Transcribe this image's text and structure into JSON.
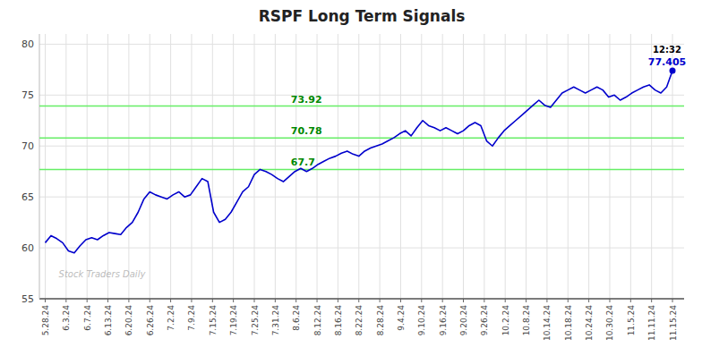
{
  "chart_data": {
    "type": "line",
    "title": "RSPF Long Term Signals",
    "series": [
      {
        "color": "#0000cc",
        "values": [
          60.5,
          61.2,
          60.9,
          60.5,
          59.7,
          59.5,
          60.2,
          60.8,
          61.0,
          60.8,
          61.2,
          61.5,
          61.4,
          61.3,
          62.0,
          62.5,
          63.5,
          64.8,
          65.5,
          65.2,
          65.0,
          64.8,
          65.2,
          65.5,
          65.0,
          65.2,
          66.0,
          66.8,
          66.5,
          63.5,
          62.5,
          62.8,
          63.5,
          64.5,
          65.5,
          66.0,
          67.2,
          67.7,
          67.5,
          67.2,
          66.8,
          66.5,
          67.0,
          67.5,
          67.8,
          67.5,
          67.8,
          68.2,
          68.5,
          68.8,
          69.0,
          69.3,
          69.5,
          69.2,
          69.0,
          69.5,
          69.8,
          70.0,
          70.2,
          70.5,
          70.8,
          71.2,
          71.5,
          71.0,
          71.8,
          72.5,
          72.0,
          71.8,
          71.5,
          71.8,
          71.5,
          71.2,
          71.5,
          72.0,
          72.3,
          72.0,
          70.5,
          70.0,
          70.8,
          71.5,
          72.0,
          72.5,
          73.0,
          73.5,
          74.0,
          74.5,
          74.0,
          73.8,
          74.5,
          75.2,
          75.5,
          75.8,
          75.5,
          75.2,
          75.5,
          75.8,
          75.5,
          74.8,
          75.0,
          74.5,
          74.8,
          75.2,
          75.5,
          75.8,
          76.0,
          75.5,
          75.2,
          75.8,
          77.405
        ]
      }
    ],
    "hlines": {
      "values": [
        73.92,
        70.78,
        67.7
      ],
      "color": "#66ee66",
      "label_color": "#008800"
    },
    "last_price": 77.405,
    "last_time": "12:32",
    "watermark": "Stock Traders Daily",
    "grid": true,
    "xlim": [
      -1,
      110
    ],
    "xticks": [
      {
        "value": 0,
        "label": "5.28.24"
      },
      {
        "value": 3.6,
        "label": "6.3.24"
      },
      {
        "value": 7.2,
        "label": "6.7.24"
      },
      {
        "value": 10.8,
        "label": "6.13.24"
      },
      {
        "value": 14.4,
        "label": "6.20.24"
      },
      {
        "value": 18,
        "label": "6.26.24"
      },
      {
        "value": 21.6,
        "label": "7.2.24"
      },
      {
        "value": 25.2,
        "label": "7.9.24"
      },
      {
        "value": 28.8,
        "label": "7.15.24"
      },
      {
        "value": 32.4,
        "label": "7.19.24"
      },
      {
        "value": 36,
        "label": "7.25.24"
      },
      {
        "value": 39.6,
        "label": "7.31.24"
      },
      {
        "value": 43.2,
        "label": "8.6.24"
      },
      {
        "value": 46.8,
        "label": "8.12.24"
      },
      {
        "value": 50.4,
        "label": "8.16.24"
      },
      {
        "value": 54,
        "label": "8.22.24"
      },
      {
        "value": 57.6,
        "label": "8.28.24"
      },
      {
        "value": 61.2,
        "label": "9.4.24"
      },
      {
        "value": 64.8,
        "label": "9.10.24"
      },
      {
        "value": 68.4,
        "label": "9.16.24"
      },
      {
        "value": 72,
        "label": "9.20.24"
      },
      {
        "value": 75.6,
        "label": "9.26.24"
      },
      {
        "value": 79.2,
        "label": "10.2.24"
      },
      {
        "value": 82.8,
        "label": "10.8.24"
      },
      {
        "value": 86.4,
        "label": "10.14.24"
      },
      {
        "value": 90,
        "label": "10.18.24"
      },
      {
        "value": 93.6,
        "label": "10.24.24"
      },
      {
        "value": 97.2,
        "label": "10.30.24"
      },
      {
        "value": 100.8,
        "label": "11.5.24"
      },
      {
        "value": 104.4,
        "label": "11.11.24"
      },
      {
        "value": 108,
        "label": "11.15.24"
      }
    ],
    "ylim": [
      55,
      81
    ],
    "yticks": [
      55,
      60,
      65,
      70,
      75,
      80
    ]
  }
}
